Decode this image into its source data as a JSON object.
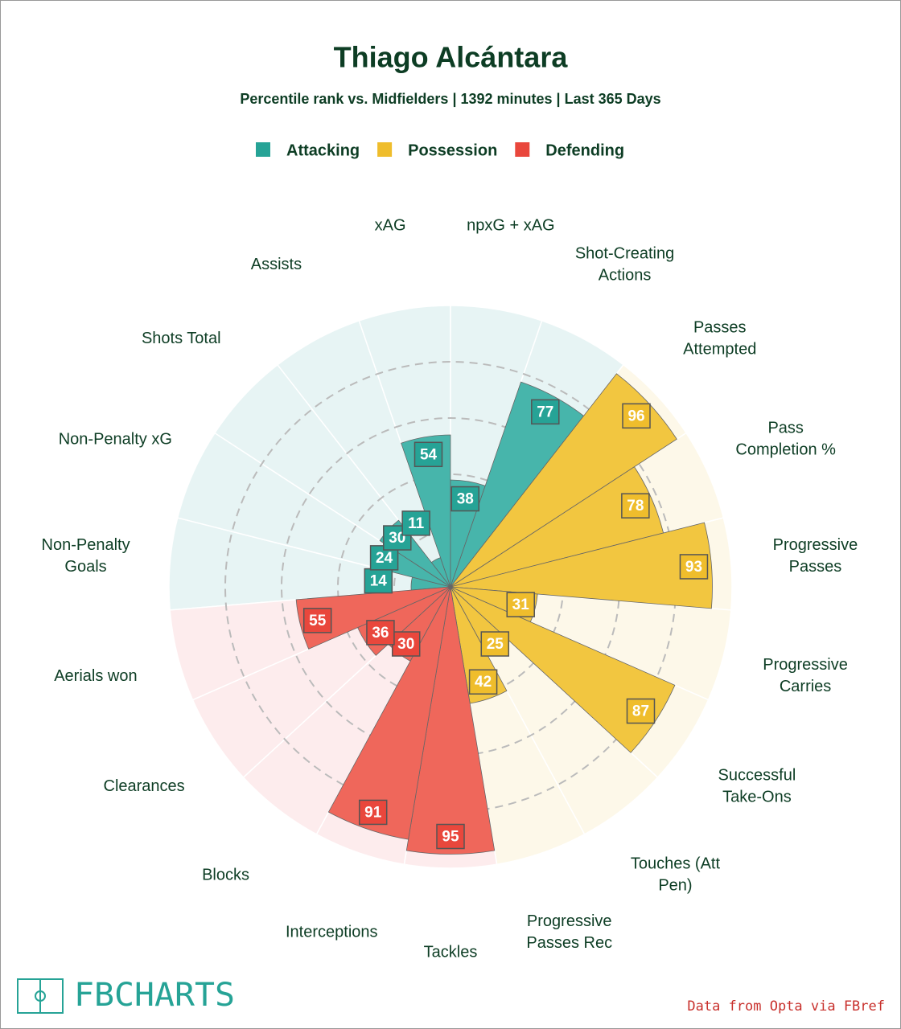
{
  "chart_data": {
    "type": "polar_bar",
    "title": "Thiago Alcántara",
    "subtitle": "Percentile rank vs. Midfielders | 1392 minutes | Last 365 Days",
    "rlim": [
      0,
      100
    ],
    "rticks": [
      20,
      40,
      60,
      80
    ],
    "grid": true,
    "legend": "top",
    "series": [
      {
        "name": "Attacking",
        "color": "#47b5ab",
        "label_color": "#26a396",
        "background": "#e7f4f4",
        "categories": [
          "Non-Penalty Goals",
          "Non-Penalty xG",
          "Shots Total",
          "Assists",
          "xAG",
          "npxG + xAG",
          "Shot-Creating Actions"
        ],
        "values": [
          14,
          24,
          30,
          11,
          54,
          38,
          77
        ]
      },
      {
        "name": "Possession",
        "color": "#f2c640",
        "label_color": "#efbd2c",
        "background": "#fdf8e9",
        "categories": [
          "Passes Attempted",
          "Pass Completion %",
          "Progressive Passes",
          "Progressive Carries",
          "Successful Take-Ons",
          "Touches (Att Pen)",
          "Progressive Passes Rec"
        ],
        "values": [
          96,
          78,
          93,
          31,
          87,
          25,
          42
        ]
      },
      {
        "name": "Defending",
        "color": "#ef675b",
        "label_color": "#e9473c",
        "background": "#fdeced",
        "categories": [
          "Tackles",
          "Interceptions",
          "Blocks",
          "Clearances",
          "Aerials won"
        ],
        "values": [
          95,
          91,
          30,
          36,
          55
        ]
      }
    ],
    "logo": "FBCHARTS",
    "source": "Data from Opta via FBref"
  }
}
